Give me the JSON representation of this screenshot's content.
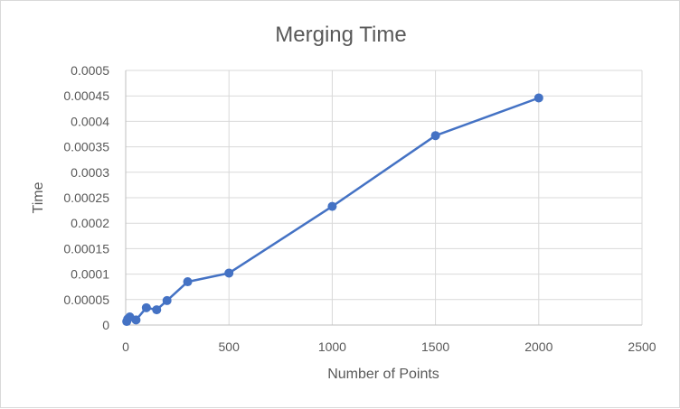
{
  "chart_data": {
    "type": "scatter",
    "title": "Merging Time",
    "xlabel": "Number of Points",
    "ylabel": "Time",
    "xlim": [
      0,
      2500
    ],
    "ylim": [
      0,
      0.0005
    ],
    "x_ticks": [
      "0",
      "500",
      "1000",
      "1500",
      "2000",
      "2500"
    ],
    "y_ticks": [
      "0",
      "0.00005",
      "0.0001",
      "0.00015",
      "0.0002",
      "0.00025",
      "0.0003",
      "0.00035",
      "0.0004",
      "0.00045",
      "0.0005"
    ],
    "grid": true,
    "legend": false,
    "series_color": "#4472c4",
    "series": [
      {
        "x": [
          5,
          10,
          20,
          50,
          100,
          150,
          200,
          300,
          500,
          1000,
          1500,
          2000
        ],
        "y": [
          7e-06,
          1.2e-05,
          1.6e-05,
          1e-05,
          3.4e-05,
          3e-05,
          4.8e-05,
          8.5e-05,
          0.000102,
          0.000233,
          0.000372,
          0.000446
        ]
      }
    ]
  }
}
